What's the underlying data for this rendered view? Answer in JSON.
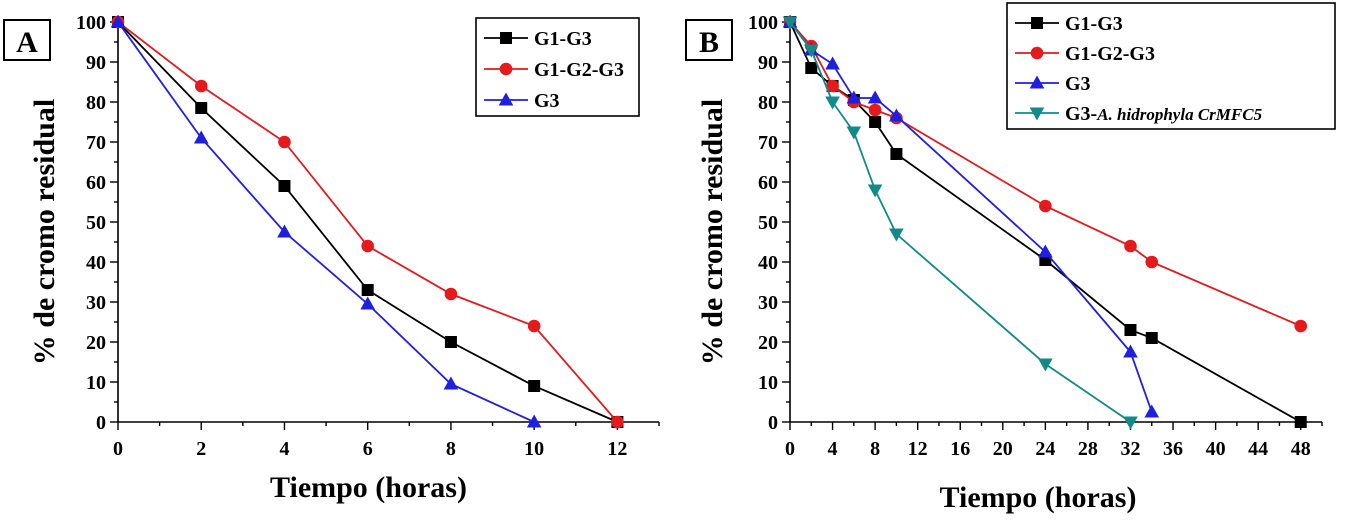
{
  "chart_data": [
    {
      "type": "line",
      "panel_label": "A",
      "xlabel": "Tiempo (horas)",
      "ylabel": "% de cromo residual",
      "xlim": [
        0,
        13
      ],
      "ylim": [
        0,
        100
      ],
      "xticks": [
        0,
        2,
        4,
        6,
        8,
        10,
        12
      ],
      "xtick_labels": [
        "0",
        "2",
        "4",
        "6",
        "8",
        "10",
        "12"
      ],
      "yticks": [
        0,
        10,
        20,
        30,
        40,
        50,
        60,
        70,
        80,
        90,
        100
      ],
      "ytick_labels": [
        "0",
        "10",
        "20",
        "30",
        "40",
        "50",
        "60",
        "70",
        "80",
        "90",
        "100"
      ],
      "legend_position": "top-right",
      "series": [
        {
          "name": "G1-G3",
          "color": "#000000",
          "marker": "square",
          "x": [
            0,
            2,
            4,
            6,
            8,
            10,
            12
          ],
          "values": [
            100,
            78.5,
            59,
            33,
            20,
            9,
            0
          ]
        },
        {
          "name": "G1-G2-G3",
          "color": "#e41a1c",
          "marker": "circle",
          "x": [
            0,
            2,
            4,
            6,
            8,
            10,
            12
          ],
          "values": [
            100,
            84,
            70,
            44,
            32,
            24,
            0
          ]
        },
        {
          "name": "G3",
          "color": "#1f1fe0",
          "marker": "triangle-up",
          "x": [
            0,
            2,
            4,
            6,
            8,
            10
          ],
          "values": [
            100,
            71,
            47.5,
            29.5,
            9.5,
            0
          ]
        }
      ]
    },
    {
      "type": "line",
      "panel_label": "B",
      "xlabel": "Tiempo (horas)",
      "ylabel": "% de cromo residual",
      "xlim": [
        0,
        50
      ],
      "ylim": [
        0,
        100
      ],
      "xticks": [
        0,
        4,
        8,
        12,
        16,
        20,
        24,
        28,
        32,
        36,
        40,
        44,
        48
      ],
      "xtick_labels": [
        "0",
        "4",
        "8",
        "12",
        "16",
        "20",
        "24",
        "28",
        "32",
        "36",
        "40",
        "44",
        "48"
      ],
      "yticks": [
        0,
        10,
        20,
        30,
        40,
        50,
        60,
        70,
        80,
        90,
        100
      ],
      "ytick_labels": [
        "0",
        "10",
        "20",
        "30",
        "40",
        "50",
        "60",
        "70",
        "80",
        "90",
        "100"
      ],
      "legend_position": "top-right",
      "series": [
        {
          "name": "G1-G3",
          "color": "#000000",
          "marker": "square",
          "x": [
            0,
            2,
            4,
            6,
            8,
            10,
            24,
            32,
            34,
            48
          ],
          "values": [
            100,
            88.5,
            84,
            80.5,
            75,
            67,
            40.5,
            23,
            21,
            0
          ]
        },
        {
          "name": "G1-G2-G3",
          "color": "#e41a1c",
          "marker": "circle",
          "x": [
            0,
            2,
            4,
            6,
            8,
            10,
            24,
            32,
            34,
            48
          ],
          "values": [
            100,
            94,
            84,
            80,
            78,
            76,
            54,
            44,
            40,
            24
          ]
        },
        {
          "name": "G3",
          "color": "#1f1fe0",
          "marker": "triangle-up",
          "x": [
            0,
            2,
            4,
            6,
            8,
            10,
            24,
            32,
            34
          ],
          "values": [
            100,
            93,
            89.5,
            81,
            81,
            76.5,
            42.5,
            17.5,
            2.5
          ]
        },
        {
          "name": "G3-",
          "name_italic": "A. hidrophyla CrMFC5",
          "color": "#128a8a",
          "marker": "triangle-down",
          "x": [
            0,
            2,
            4,
            6,
            8,
            10,
            24,
            32
          ],
          "values": [
            100,
            93,
            80,
            72.5,
            58,
            47,
            14.5,
            0
          ]
        }
      ]
    }
  ]
}
